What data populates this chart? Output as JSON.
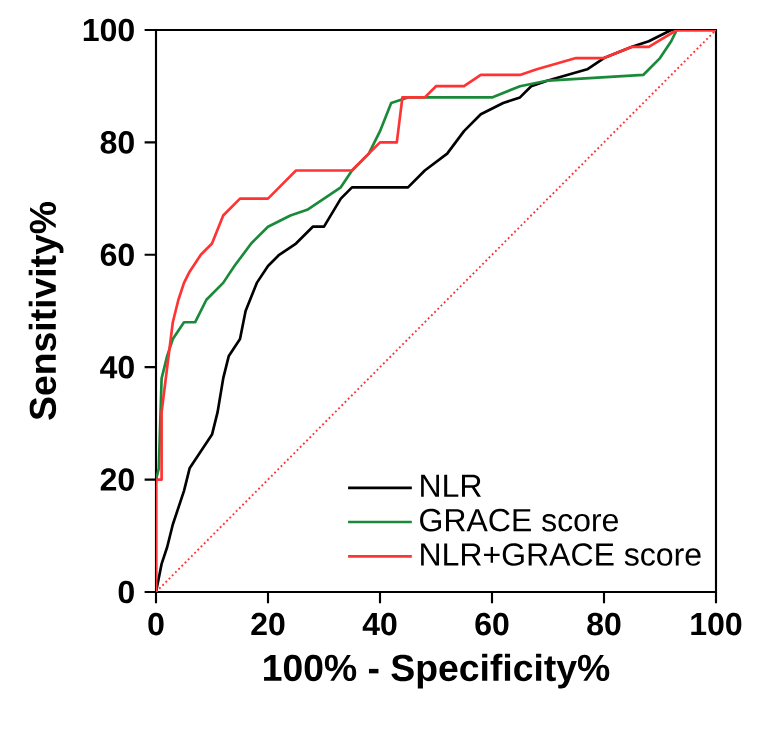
{
  "chart_data": {
    "type": "line",
    "xlabel": "100% - Specificity%",
    "ylabel": "Sensitivity%",
    "xlim": [
      0,
      100
    ],
    "ylim": [
      0,
      100
    ],
    "xticks": [
      0,
      20,
      40,
      60,
      80,
      100
    ],
    "yticks": [
      0,
      20,
      40,
      60,
      80,
      100
    ],
    "grid": false,
    "legend": "bottom right",
    "marker": "none",
    "series": [
      {
        "name": "NLR",
        "color": "#000000",
        "x": [
          0,
          1,
          2,
          3,
          5,
          6,
          8,
          10,
          11,
          12,
          13,
          15,
          16,
          18,
          20,
          22,
          25,
          28,
          30,
          33,
          35,
          45,
          48,
          52,
          55,
          58,
          62,
          65,
          67,
          70,
          77,
          80,
          85,
          88,
          92,
          100
        ],
        "values": [
          0,
          5,
          8,
          12,
          18,
          22,
          25,
          28,
          32,
          38,
          42,
          45,
          50,
          55,
          58,
          60,
          62,
          65,
          65,
          70,
          72,
          72,
          75,
          78,
          82,
          85,
          87,
          88,
          90,
          91,
          93,
          95,
          97,
          98,
          100,
          100
        ]
      },
      {
        "name": "GRACE score",
        "color": "#1a8a3a",
        "x": [
          0,
          0,
          0.5,
          1,
          2,
          3,
          5,
          7,
          9,
          12,
          14,
          17,
          20,
          24,
          27,
          30,
          33,
          35,
          38,
          40,
          42,
          45,
          60,
          65,
          70,
          87,
          90,
          92,
          93,
          100
        ],
        "values": [
          0,
          20,
          22,
          38,
          42,
          45,
          48,
          48,
          52,
          55,
          58,
          62,
          65,
          67,
          68,
          70,
          72,
          75,
          78,
          82,
          87,
          88,
          88,
          90,
          91,
          92,
          95,
          98,
          100,
          100
        ]
      },
      {
        "name": "NLR+GRACE score",
        "color": "#ff3333",
        "x": [
          0,
          0,
          1,
          1,
          2,
          3,
          4,
          5,
          6,
          8,
          10,
          12,
          15,
          20,
          22,
          25,
          35,
          38,
          40,
          43,
          44,
          48,
          50,
          55,
          58,
          65,
          68,
          75,
          80,
          85,
          88,
          93,
          100
        ],
        "values": [
          0,
          20,
          20,
          32,
          40,
          48,
          52,
          55,
          57,
          60,
          62,
          67,
          70,
          70,
          72,
          75,
          75,
          78,
          80,
          80,
          88,
          88,
          90,
          90,
          92,
          92,
          93,
          95,
          95,
          97,
          97,
          100,
          100
        ]
      },
      {
        "color": "#ff3333",
        "line_style": "dotted",
        "x": [
          0,
          100
        ],
        "values": [
          0,
          100
        ]
      }
    ]
  }
}
